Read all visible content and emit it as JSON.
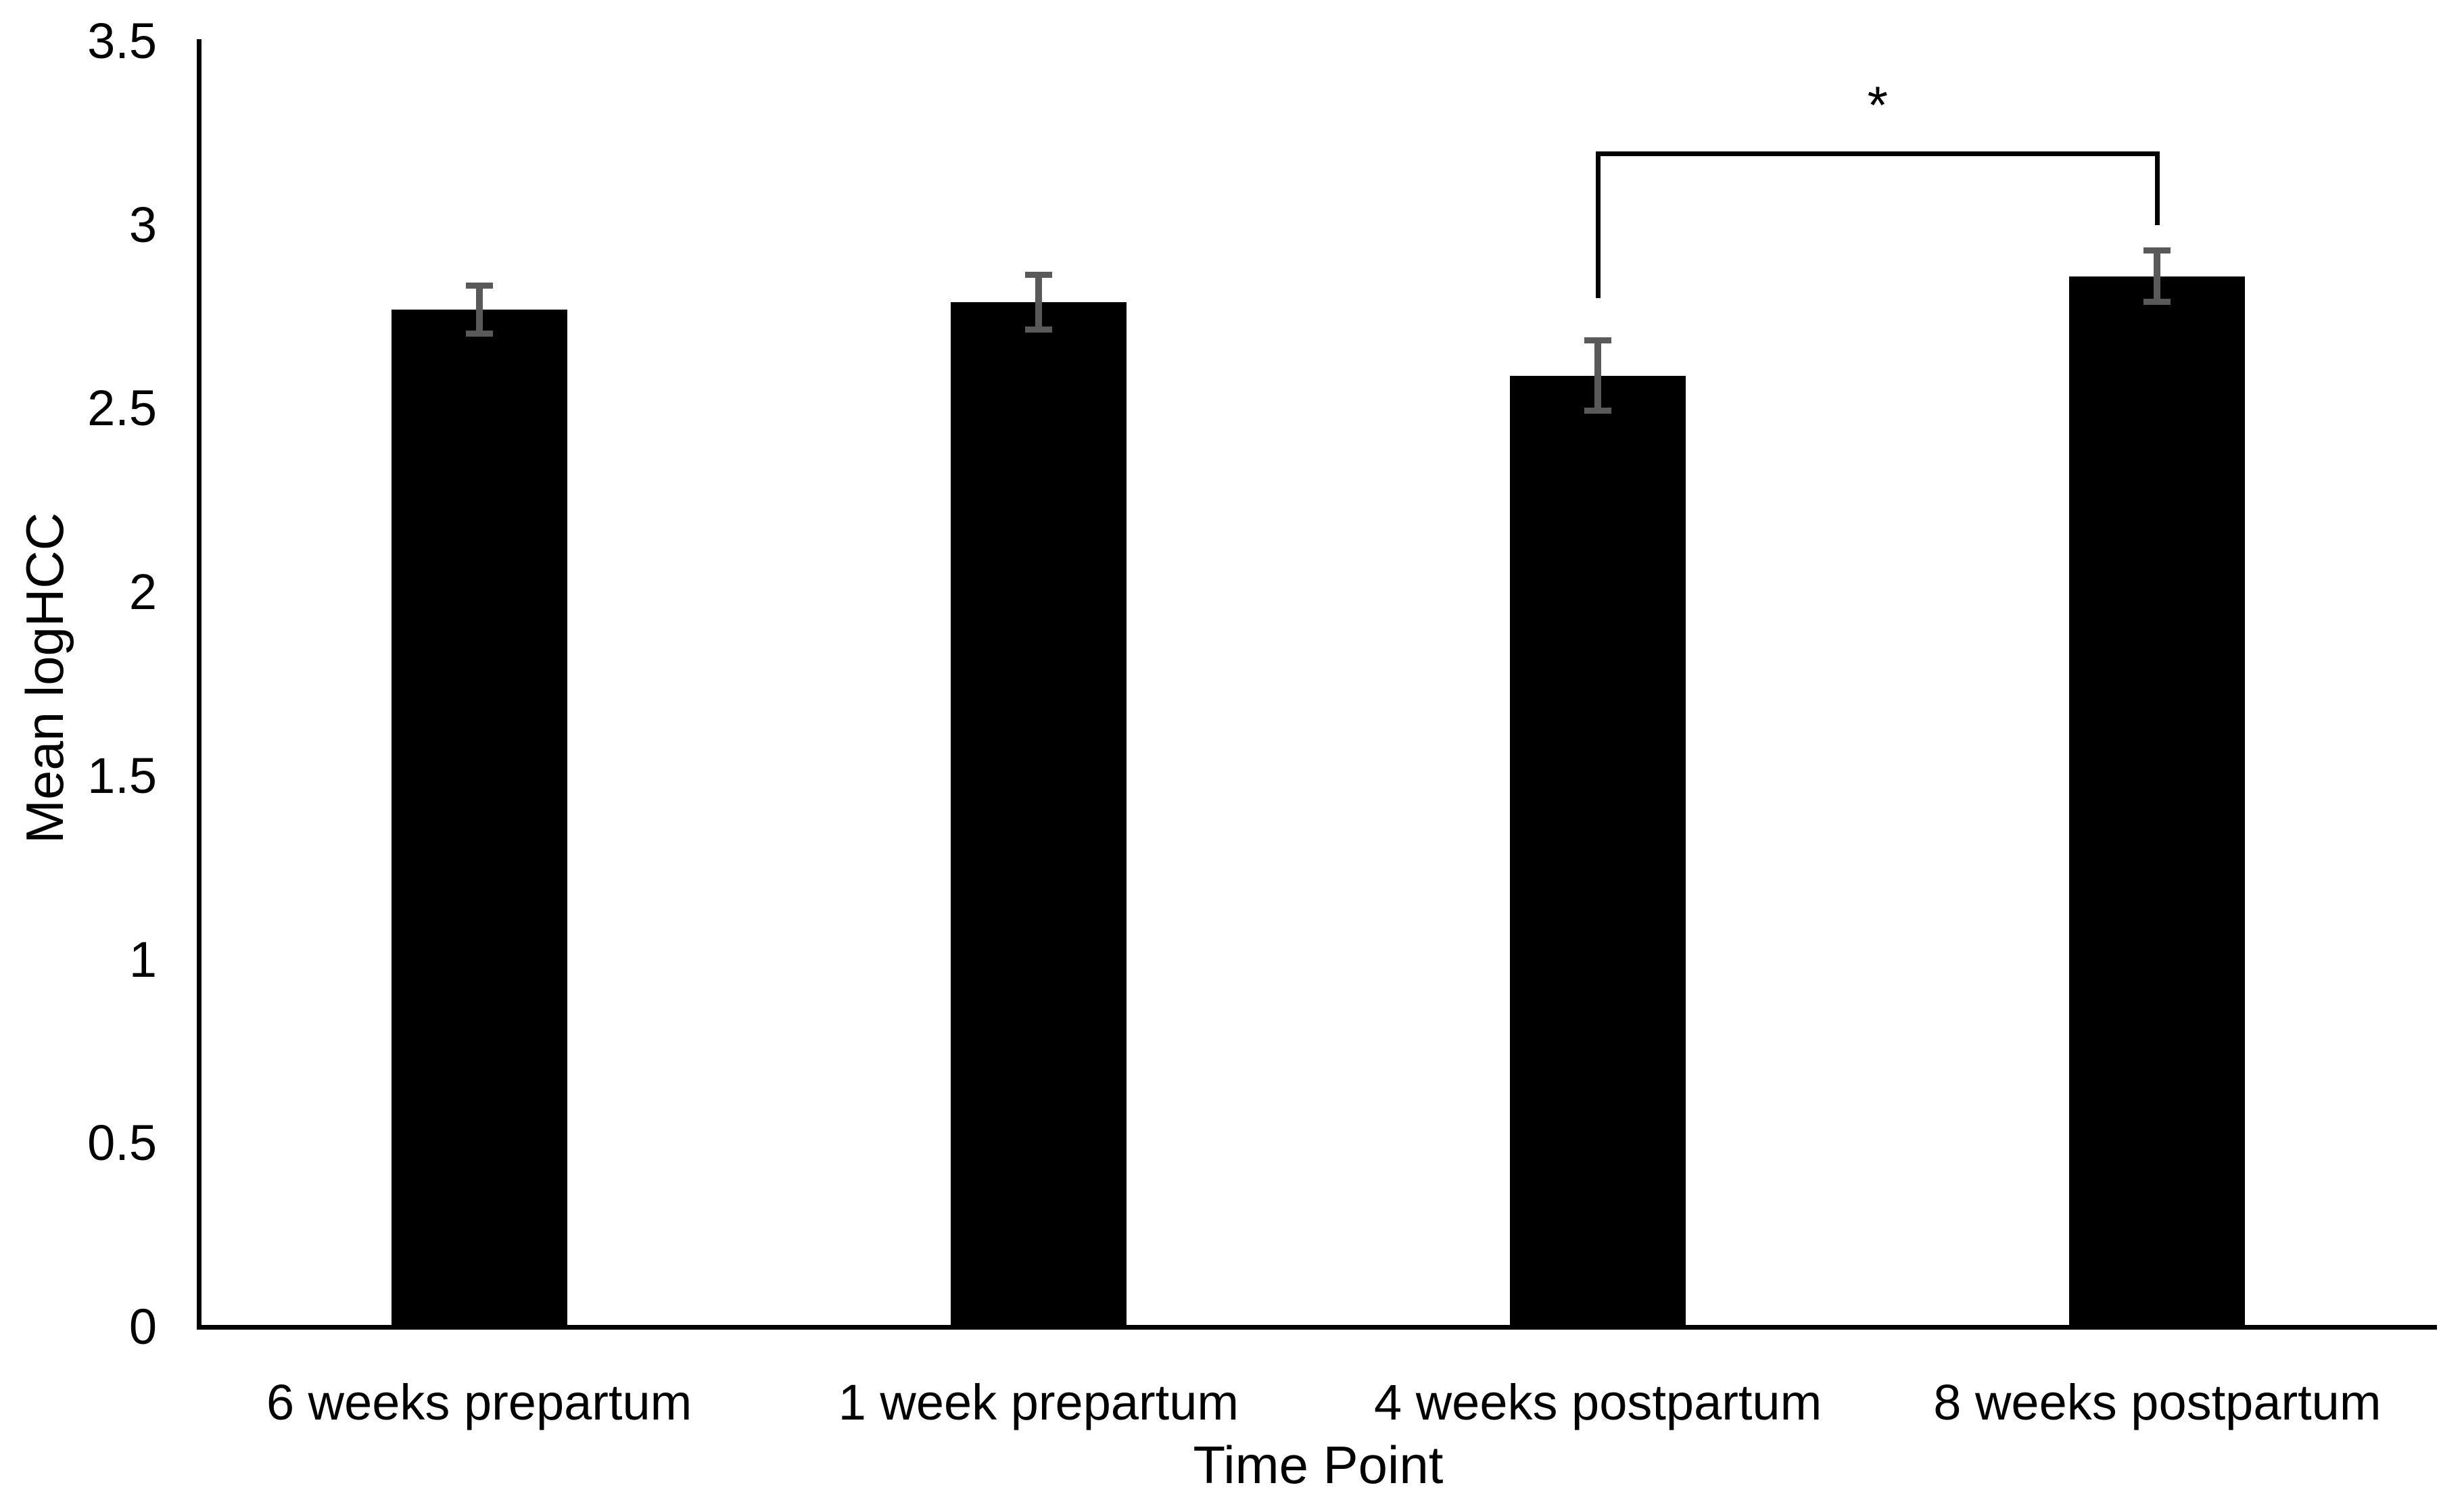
{
  "chart_data": {
    "type": "bar",
    "title": "",
    "xlabel": "Time Point",
    "ylabel": "Mean logHCC",
    "categories": [
      "6 weeks prepartum",
      "1 week prepartum",
      "4 weeks postpartum",
      "8 weeks postpartum"
    ],
    "values": [
      2.77,
      2.79,
      2.59,
      2.86
    ],
    "error_bars": [
      0.065,
      0.075,
      0.095,
      0.07
    ],
    "ylim": [
      0,
      3.5
    ],
    "ytick_step": 0.5,
    "ytick_labels": [
      "0",
      "0.5",
      "1",
      "1.5",
      "2",
      "2.5",
      "3",
      "3.5"
    ],
    "grid": false,
    "legend": "none",
    "bar_color": "#000000",
    "error_bar_color": "#595959",
    "axis_color": "#000000",
    "significance": {
      "label": "*",
      "from_category": "4 weeks postpartum",
      "to_category": "8 weeks postpartum",
      "from_index": 2,
      "to_index": 3,
      "bracket_top_value": 3.2,
      "left_drop_to_value": 2.8,
      "right_drop_to_value": 3.0
    }
  }
}
